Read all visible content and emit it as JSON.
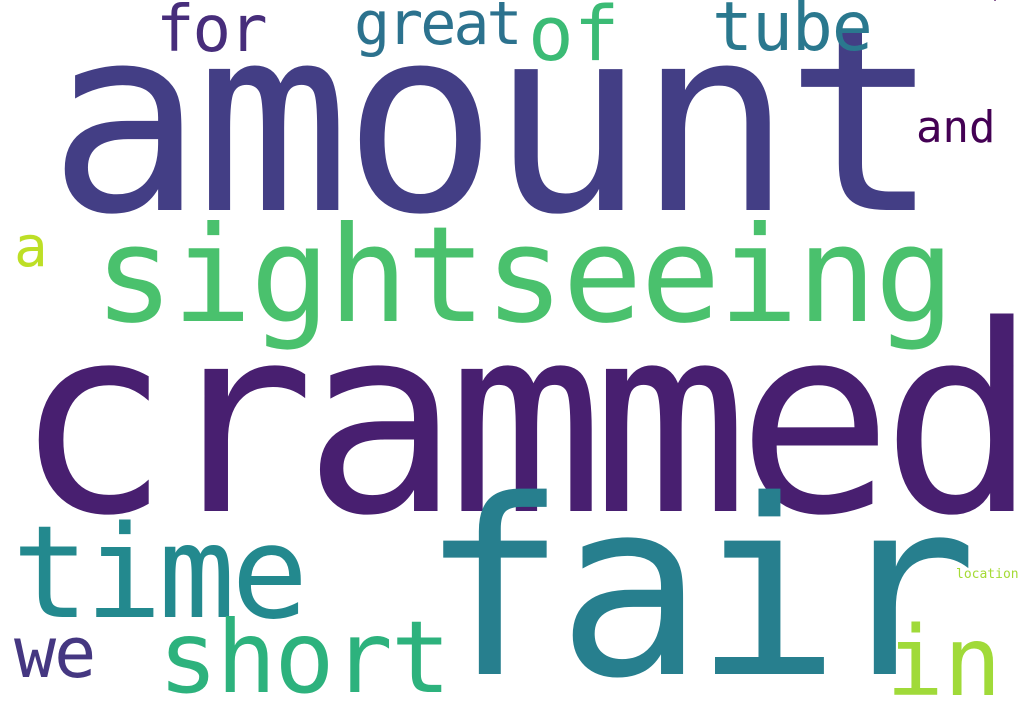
{
  "words": [
    {
      "text": "amount",
      "color": "#433e85"
    },
    {
      "text": "crammed",
      "color": "#481f70"
    },
    {
      "text": "fair",
      "color": "#277f8e"
    },
    {
      "text": "sightseeing",
      "color": "#4ac16d"
    },
    {
      "text": "time",
      "color": "#23898e"
    },
    {
      "text": "short",
      "color": "#2db27d"
    },
    {
      "text": "we",
      "color": "#453781"
    },
    {
      "text": "in",
      "color": "#a0da39"
    },
    {
      "text": "for",
      "color": "#472d7b"
    },
    {
      "text": "great",
      "color": "#2c728e"
    },
    {
      "text": "of",
      "color": "#3bbb75"
    },
    {
      "text": "tube",
      "color": "#2a788e"
    },
    {
      "text": "and",
      "color": "#440154"
    },
    {
      "text": "a",
      "color": "#bddf26"
    },
    {
      "text": "location",
      "color": "#a5db36"
    }
  ]
}
